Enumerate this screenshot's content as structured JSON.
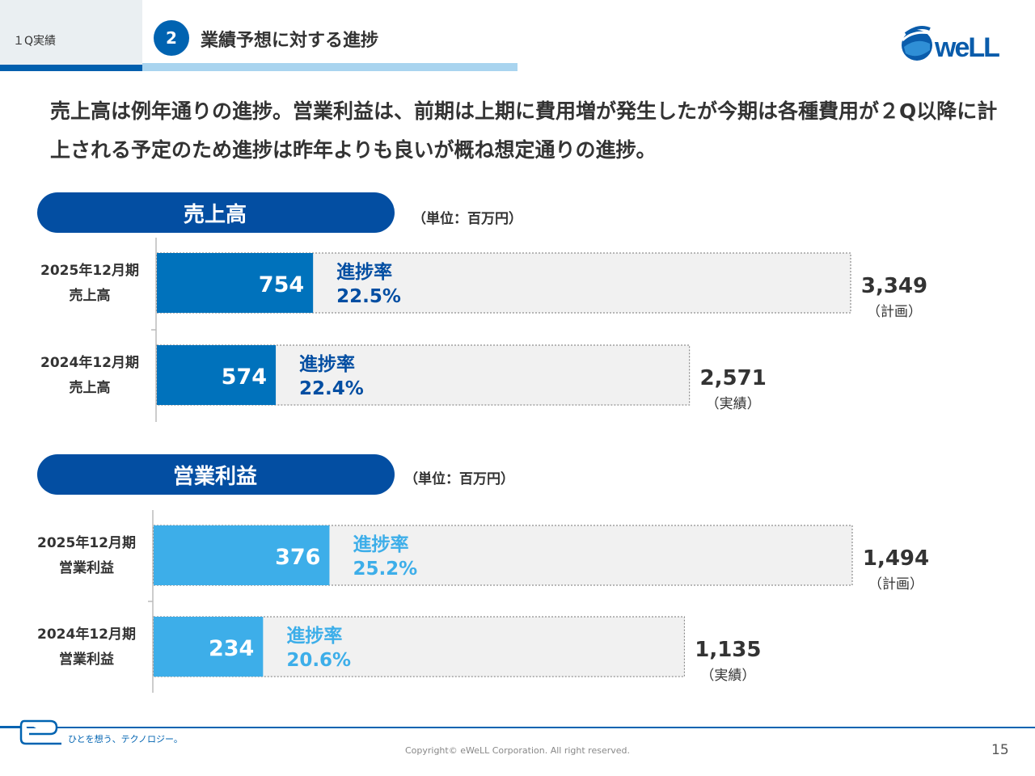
{
  "header": {
    "section_label": "１Q実績",
    "step_number": "2",
    "title": "業績予想に対する進捗"
  },
  "logo": {
    "text": "weLL",
    "icon": "ewell-globe-logo"
  },
  "lead_text": "売上高は例年通りの進捗。営業利益は、前期は上期に費用増が発生したが今期は各種費用が２Q以降に計上される予定のため進捗は昨年よりも良いが概ね想定通りの進捗。",
  "chart_data": [
    {
      "type": "bar",
      "orientation": "horizontal",
      "title": "売上高",
      "unit": "（単位：百万円）",
      "bar_color": "#0072bc",
      "label_color": "#034ea2",
      "rows": [
        {
          "label_line1": "2025年12月期",
          "label_line2": "売上高",
          "actual": 754,
          "actual_label": "754",
          "total": 3349,
          "total_label": "3,349",
          "total_note": "（計画）",
          "progress_title": "進捗率",
          "progress": "22.5%"
        },
        {
          "label_line1": "2024年12月期",
          "label_line2": "売上高",
          "actual": 574,
          "actual_label": "574",
          "total": 2571,
          "total_label": "2,571",
          "total_note": "（実績）",
          "progress_title": "進捗率",
          "progress": "22.4%"
        }
      ]
    },
    {
      "type": "bar",
      "orientation": "horizontal",
      "title": "営業利益",
      "unit": "（単位：百万円）",
      "bar_color": "#3daee9",
      "label_color": "#3daee9",
      "rows": [
        {
          "label_line1": "2025年12月期",
          "label_line2": "営業利益",
          "actual": 376,
          "actual_label": "376",
          "total": 1494,
          "total_label": "1,494",
          "total_note": "（計画）",
          "progress_title": "進捗率",
          "progress": "25.2%"
        },
        {
          "label_line1": "2024年12月期",
          "label_line2": "営業利益",
          "actual": 234,
          "actual_label": "234",
          "total": 1135,
          "total_label": "1,135",
          "total_note": "（実績）",
          "progress_title": "進捗率",
          "progress": "20.6%"
        }
      ]
    }
  ],
  "footer": {
    "tagline": "ひとを想う、テクノロジー。",
    "copyright": "Copyright© eWeLL Corporation. All right reserved.",
    "page_number": "15"
  }
}
